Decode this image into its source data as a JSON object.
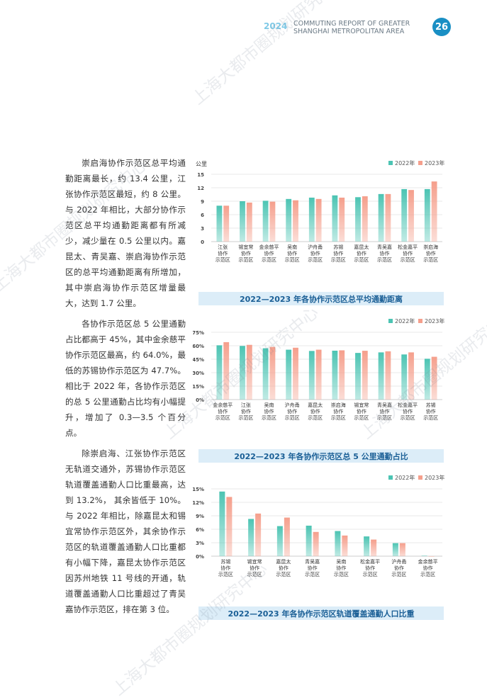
{
  "header": {
    "year": "2024",
    "title_line1": "COMMUTING REPORT OF GREATER",
    "title_line2": "SHANGHAI METROPOLITAN AREA",
    "page_number": "26"
  },
  "paragraphs": [
    "崇启海协作示范区总平均通勤距离最长，约 13.4 公里，江张协作示范区最短，约 8 公里。与 2022 年相比，大部分协作示范区总平均通勤距离都有所减少，减少量在 0.5 公里以内。嘉昆太、青吴嘉、崇启海协作示范区的总平均通勤距离有所增加，其中崇启海协作示范区增量最大，达到 1.7 公里。",
    "各协作示范区总 5 公里通勤占比都高于 45%，其中金余慈平协作示范区最高，约 64.0%，最低的苏锡协作示范区为 47.7%。相比于 2022 年，各协作示范区的总 5 公里通勤占比均有小幅提升，增加了 0.3—3.5 个百分点。",
    "除崇启海、江张协作示范区无轨道交通外，苏锡协作示范区轨道覆盖通勤人口比重最高，达到 13.2%， 其余皆低于 10%。与 2022 年相比，除嘉昆太和锡宜常协作示范区外，其余协作示范区的轨道覆盖通勤人口比重都有小幅下降，嘉昆太协作示范区因苏州地铁 11 号线的开通，轨道覆盖通勤人口比重超过了青吴嘉协作示范区，排在第 3 位。"
  ],
  "watermark": "上海大都市圈规划研究中心",
  "colors": {
    "y2022": "#4cc4b3",
    "y2023": "#f59f8c",
    "accent": "#1a8fc4",
    "caption_bg": "#dcedf8"
  },
  "chart_data": [
    {
      "type": "bar",
      "title": "2022—2023 年各协作示范区总平均通勤距离",
      "ylabel": "公里",
      "ylim": [
        0,
        15
      ],
      "yticks": [
        "0",
        "3",
        "6",
        "9",
        "12",
        "15"
      ],
      "legend": "top-right",
      "categories": [
        [
          "江张",
          "协作",
          "示范区"
        ],
        [
          "锡宜常",
          "协作",
          "示范区"
        ],
        [
          "金余慈平",
          "协作",
          "示范区"
        ],
        [
          "吴南",
          "协作",
          "示范区"
        ],
        [
          "沪舟甬",
          "协作",
          "示范区"
        ],
        [
          "苏锡",
          "协作",
          "示范区"
        ],
        [
          "嘉昆太",
          "协作",
          "示范区"
        ],
        [
          "青吴嘉",
          "协作",
          "示范区"
        ],
        [
          "松金嘉平",
          "协作",
          "示范区"
        ],
        [
          "崇启海",
          "协作",
          "示范区"
        ]
      ],
      "series": [
        {
          "name": "2022年",
          "values": [
            8.0,
            9.0,
            9.1,
            9.5,
            9.8,
            10.3,
            9.9,
            10.6,
            11.7,
            11.7
          ]
        },
        {
          "name": "2023年",
          "values": [
            8.0,
            8.7,
            8.9,
            9.2,
            9.5,
            9.8,
            10.1,
            10.6,
            11.5,
            13.4
          ]
        }
      ]
    },
    {
      "type": "bar",
      "title": "2022—2023 年各协作示范区总 5 公里通勤占比",
      "ylim": [
        0,
        75
      ],
      "yticks": [
        "0%",
        "15%",
        "30%",
        "45%",
        "60%",
        "75%"
      ],
      "legend": "top-right",
      "categories": [
        [
          "金余慈平",
          "协作",
          "示范区"
        ],
        [
          "江张",
          "协作",
          "示范区"
        ],
        [
          "吴南",
          "协作",
          "示范区"
        ],
        [
          "沪舟甬",
          "协作",
          "示范区"
        ],
        [
          "嘉昆太",
          "协作",
          "示范区"
        ],
        [
          "崇启海",
          "协作",
          "示范区"
        ],
        [
          "锡宜常",
          "协作",
          "示范区"
        ],
        [
          "青吴嘉",
          "协作",
          "示范区"
        ],
        [
          "松金嘉平",
          "协作",
          "示范区"
        ],
        [
          "苏锡",
          "协作",
          "示范区"
        ]
      ],
      "series": [
        {
          "name": "2022年",
          "values": [
            60.5,
            59.8,
            57.2,
            55.6,
            54.2,
            54.5,
            52.0,
            52.6,
            50.3,
            45.5
          ]
        },
        {
          "name": "2023年",
          "values": [
            64.0,
            61.0,
            58.7,
            57.8,
            55.6,
            54.9,
            54.4,
            53.8,
            52.6,
            47.7
          ]
        }
      ]
    },
    {
      "type": "bar",
      "title": "2022—2023 年各协作示范区轨道覆盖通勤人口比重",
      "ylim": [
        0,
        15
      ],
      "yticks": [
        "0%",
        "3%",
        "6%",
        "9%",
        "12%",
        "15%"
      ],
      "legend": "top-right",
      "categories": [
        [
          "苏锡",
          "协作",
          "示范区"
        ],
        [
          "锡宜常",
          "协作",
          "示范区"
        ],
        [
          "嘉昆太",
          "协作",
          "示范区"
        ],
        [
          "青吴嘉",
          "协作",
          "示范区"
        ],
        [
          "吴南",
          "协作",
          "示范区"
        ],
        [
          "松金嘉平",
          "协作",
          "示范区"
        ],
        [
          "沪舟甬",
          "协作",
          "示范区"
        ],
        [
          "金余慈平",
          "协作",
          "示范区"
        ]
      ],
      "series": [
        {
          "name": "2022年",
          "values": [
            14.4,
            8.3,
            6.7,
            6.8,
            5.6,
            4.4,
            2.9,
            0.1
          ]
        },
        {
          "name": "2023年",
          "values": [
            13.2,
            9.5,
            8.6,
            5.4,
            4.6,
            3.7,
            2.9,
            0.0
          ]
        }
      ]
    }
  ]
}
